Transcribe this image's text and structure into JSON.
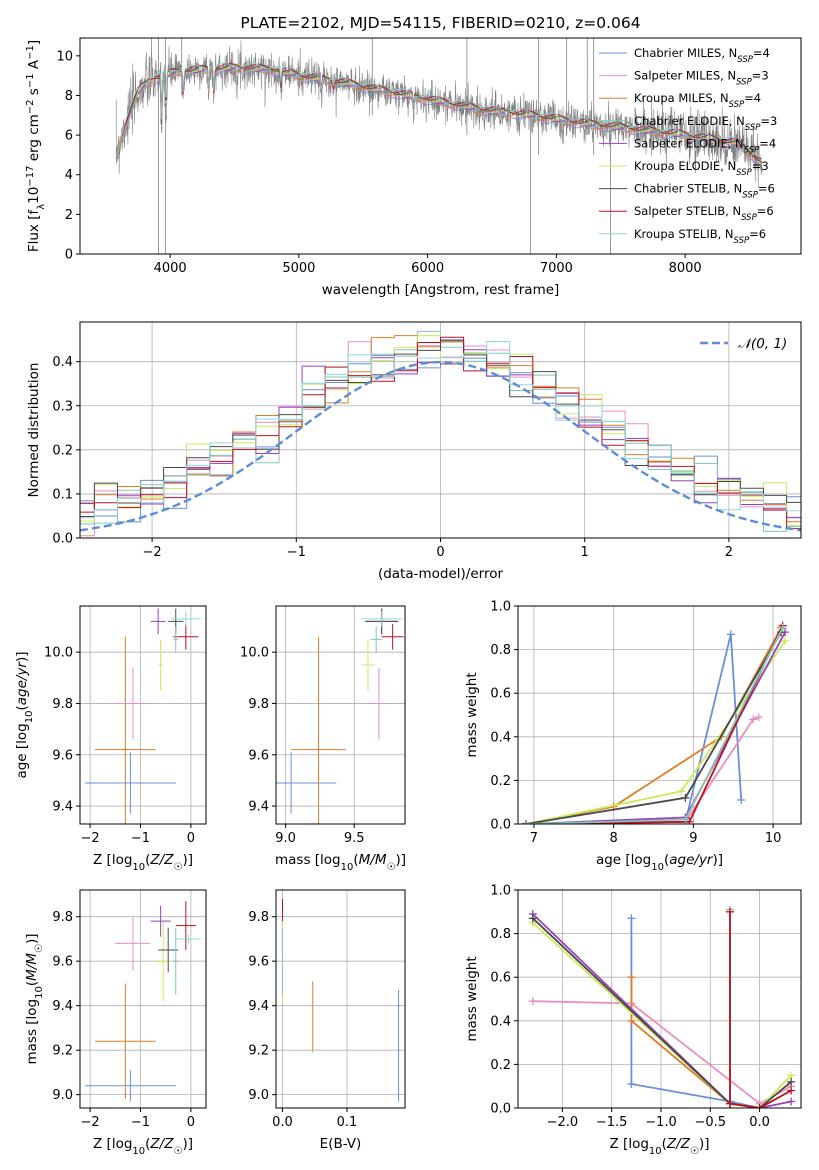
{
  "colors": {
    "Chabrier MILES": "#6a8fd8",
    "Salpeter MILES": "#e98fc0",
    "Kroupa MILES": "#e07c28",
    "Chabrier ELODIE": "#7fc8b4",
    "Salpeter ELODIE": "#9a3fc0",
    "Kroupa ELODIE": "#c9ea5a",
    "Chabrier STELIB": "#4a4a4a",
    "Salpeter STELIB": "#c01020",
    "Kroupa STELIB": "#8adada",
    "data": "#808080",
    "normal": "#5b8ed6"
  },
  "chart_data": [
    {
      "id": "spectrum",
      "type": "line",
      "title": "PLATE=2102, MJD=54115, FIBERID=0210, z=0.064",
      "xlabel": "wavelength [Angstrom, rest frame]",
      "ylabel": "Flux [fλ10⁻¹⁷ erg cm⁻² s⁻¹ A⁻¹]",
      "xlim": [
        3300,
        8900
      ],
      "ylim": [
        0,
        10.9
      ],
      "xticks": [
        4000,
        5000,
        6000,
        7000,
        8000
      ],
      "yticks": [
        0,
        2,
        4,
        6,
        8,
        10
      ],
      "grid": false,
      "legend_loc": "right",
      "legend": [
        "Chabrier MILES, N_SSP=4",
        "Salpeter MILES, N_SSP=3",
        "Kroupa MILES, N_SSP=4",
        "Chabrier ELODIE, N_SSP=3",
        "Salpeter ELODIE, N_SSP=4",
        "Kroupa ELODIE, N_SSP=3",
        "Chabrier STELIB, N_SSP=6",
        "Salpeter STELIB, N_SSP=6",
        "Kroupa STELIB, N_SSP=6"
      ],
      "data_continuum": [
        [
          3580,
          5.0
        ],
        [
          3650,
          6.5
        ],
        [
          3750,
          8.2
        ],
        [
          3850,
          8.8
        ],
        [
          3950,
          9.0
        ],
        [
          4050,
          9.2
        ],
        [
          4250,
          9.3
        ],
        [
          4500,
          9.4
        ],
        [
          4800,
          9.3
        ],
        [
          5000,
          9.0
        ],
        [
          5300,
          8.7
        ],
        [
          5600,
          8.3
        ],
        [
          6000,
          7.8
        ],
        [
          6400,
          7.3
        ],
        [
          6800,
          7.0
        ],
        [
          7200,
          6.6
        ],
        [
          7600,
          6.3
        ],
        [
          8000,
          6.0
        ],
        [
          8400,
          5.6
        ],
        [
          8600,
          4.6
        ]
      ]
    },
    {
      "id": "residuals",
      "type": "histogram",
      "xlabel": "(data-model)/error",
      "ylabel": "Normed distribution",
      "xlim": [
        -2.5,
        2.5
      ],
      "ylim": [
        0,
        0.49
      ],
      "xticks": [
        -2,
        -1,
        0,
        1,
        2
      ],
      "yticks": [
        0.0,
        0.1,
        0.2,
        0.3,
        0.4
      ],
      "grid": true,
      "legend_loc": "upper right",
      "legend": [
        "N(0,1)"
      ],
      "normal": {
        "mean": 0,
        "sd": 1
      }
    },
    {
      "id": "age_vs_Z",
      "type": "errorbar",
      "xlabel": "Z [log10(Z/Z☉)]",
      "ylabel": "age [log10(age/yr)]",
      "xlim": [
        -2.2,
        0.3
      ],
      "ylim": [
        9.33,
        10.18
      ],
      "xticks": [
        -2,
        -1,
        0
      ],
      "yticks": [
        9.4,
        9.6,
        9.8,
        10.0
      ],
      "grid": true,
      "points": [
        {
          "model": "Chabrier MILES",
          "x": -1.2,
          "xerr": 0.9,
          "y": 9.49,
          "yerr": 0.12
        },
        {
          "model": "Kroupa MILES",
          "x": -1.3,
          "xerr": 0.6,
          "y": 9.62,
          "yerr": 0.44
        },
        {
          "model": "Salpeter MILES",
          "x": -1.15,
          "xerr": 0.35,
          "y": 9.8,
          "yerr": 0.14
        },
        {
          "model": "Kroupa ELODIE",
          "x": -0.6,
          "xerr": 0.05,
          "y": 9.95,
          "yerr": 0.1
        },
        {
          "model": "Salpeter ELODIE",
          "x": -0.65,
          "xerr": 0.15,
          "y": 10.12,
          "yerr": 0.05
        },
        {
          "model": "Chabrier STELIB",
          "x": -0.3,
          "xerr": 0.15,
          "y": 10.12,
          "yerr": 0.05
        },
        {
          "model": "Salpeter STELIB",
          "x": -0.1,
          "xerr": 0.25,
          "y": 10.06,
          "yerr": 0.05
        },
        {
          "model": "Chabrier ELODIE",
          "x": -0.3,
          "xerr": 0.05,
          "y": 10.05,
          "yerr": 0.05
        },
        {
          "model": "Kroupa STELIB",
          "x": -0.1,
          "xerr": 0.3,
          "y": 10.13,
          "yerr": 0.03
        }
      ]
    },
    {
      "id": "age_vs_mass",
      "type": "errorbar",
      "xlabel": "mass [log10(M/M☉)]",
      "ylabel": "",
      "xlim": [
        8.93,
        9.87
      ],
      "ylim": [
        9.33,
        10.18
      ],
      "xticks": [
        9.0,
        9.5
      ],
      "yticks": [
        9.4,
        9.6,
        9.8,
        10.0
      ],
      "grid": true,
      "points": [
        {
          "model": "Chabrier MILES",
          "x": 9.04,
          "xerr": 0.33,
          "y": 9.49,
          "yerr": 0.12
        },
        {
          "model": "Kroupa MILES",
          "x": 9.24,
          "xerr": 0.2,
          "y": 9.62,
          "yerr": 0.44
        },
        {
          "model": "Salpeter MILES",
          "x": 9.68,
          "xerr": 0.08,
          "y": 9.8,
          "yerr": 0.14
        },
        {
          "model": "Kroupa ELODIE",
          "x": 9.6,
          "xerr": 0.05,
          "y": 9.95,
          "yerr": 0.1
        },
        {
          "model": "Salpeter ELODIE",
          "x": 9.7,
          "xerr": 0.12,
          "y": 10.12,
          "yerr": 0.05
        },
        {
          "model": "Chabrier STELIB",
          "x": 9.7,
          "xerr": 0.12,
          "y": 10.12,
          "yerr": 0.05
        },
        {
          "model": "Salpeter STELIB",
          "x": 9.78,
          "xerr": 0.08,
          "y": 10.06,
          "yerr": 0.05
        },
        {
          "model": "Chabrier ELODIE",
          "x": 9.66,
          "xerr": 0.04,
          "y": 10.05,
          "yerr": 0.05
        },
        {
          "model": "Kroupa STELIB",
          "x": 9.7,
          "xerr": 0.15,
          "y": 10.13,
          "yerr": 0.03
        }
      ]
    },
    {
      "id": "weight_vs_age",
      "type": "line",
      "xlabel": "age [log10(age/yr)]",
      "ylabel": "mass weight",
      "xlim": [
        6.8,
        10.35
      ],
      "ylim": [
        0,
        1.0
      ],
      "xticks": [
        7,
        8,
        9,
        10
      ],
      "yticks": [
        0.0,
        0.2,
        0.4,
        0.6,
        0.8,
        1.0
      ],
      "grid": true,
      "series": [
        {
          "model": "Chabrier MILES",
          "x": [
            6.9,
            8.9,
            9.47,
            9.6
          ],
          "y": [
            0.0,
            0.01,
            0.87,
            0.11
          ]
        },
        {
          "model": "Salpeter MILES",
          "x": [
            6.9,
            8.9,
            9.75,
            9.82
          ],
          "y": [
            0.0,
            0.01,
            0.48,
            0.49
          ]
        },
        {
          "model": "Kroupa MILES",
          "x": [
            6.9,
            8.0,
            9.35,
            10.1
          ],
          "y": [
            0.0,
            0.08,
            0.4,
            0.9
          ]
        },
        {
          "model": "Kroupa ELODIE",
          "x": [
            6.9,
            8.85,
            10.15
          ],
          "y": [
            0.0,
            0.15,
            0.84
          ]
        },
        {
          "model": "Salpeter ELODIE",
          "x": [
            6.9,
            8.9,
            10.15
          ],
          "y": [
            0.0,
            0.03,
            0.88
          ]
        },
        {
          "model": "Chabrier STELIB",
          "x": [
            6.9,
            8.9,
            10.1
          ],
          "y": [
            0.0,
            0.12,
            0.88
          ]
        },
        {
          "model": "Salpeter STELIB",
          "x": [
            6.9,
            8.95,
            10.12
          ],
          "y": [
            0.0,
            0.01,
            0.91
          ]
        },
        {
          "model": "Chabrier ELODIE",
          "x": [
            6.9,
            8.9,
            10.12
          ],
          "y": [
            0.0,
            0.02,
            0.9
          ]
        }
      ]
    },
    {
      "id": "mass_vs_Z",
      "type": "errorbar",
      "xlabel": "Z [log10(Z/Z☉)]",
      "ylabel": "mass [log10(M/M☉)]",
      "xlim": [
        -2.2,
        0.3
      ],
      "ylim": [
        8.94,
        9.92
      ],
      "xticks": [
        -2,
        -1,
        0
      ],
      "yticks": [
        9.0,
        9.2,
        9.4,
        9.6,
        9.8
      ],
      "grid": true,
      "points": [
        {
          "model": "Chabrier MILES",
          "x": -1.2,
          "xerr": 0.9,
          "y": 9.04,
          "yerr": 0.07
        },
        {
          "model": "Kroupa MILES",
          "x": -1.3,
          "xerr": 0.6,
          "y": 9.24,
          "yerr": 0.26
        },
        {
          "model": "Salpeter MILES",
          "x": -1.15,
          "xerr": 0.35,
          "y": 9.68,
          "yerr": 0.12
        },
        {
          "model": "Kroupa ELODIE",
          "x": -0.55,
          "xerr": 0.15,
          "y": 9.6,
          "yerr": 0.18
        },
        {
          "model": "Chabrier STELIB",
          "x": -0.45,
          "xerr": 0.2,
          "y": 9.65,
          "yerr": 0.1
        },
        {
          "model": "Salpeter ELODIE",
          "x": -0.6,
          "xerr": 0.2,
          "y": 9.78,
          "yerr": 0.07
        },
        {
          "model": "Salpeter STELIB",
          "x": -0.1,
          "xerr": 0.2,
          "y": 9.76,
          "yerr": 0.11
        },
        {
          "model": "Chabrier ELODIE",
          "x": -0.3,
          "xerr": 0.05,
          "y": 9.6,
          "yerr": 0.15
        },
        {
          "model": "Kroupa STELIB",
          "x": -0.05,
          "xerr": 0.25,
          "y": 9.7,
          "yerr": 0.02
        }
      ]
    },
    {
      "id": "mass_vs_ebv",
      "type": "errorbar",
      "xlabel": "E(B-V)",
      "ylabel": "",
      "xlim": [
        -0.01,
        0.19
      ],
      "ylim": [
        8.94,
        9.92
      ],
      "xticks": [
        0.0,
        0.1
      ],
      "yticks": [
        9.0,
        9.2,
        9.4,
        9.6,
        9.8
      ],
      "grid": true,
      "points": [
        {
          "model": "Chabrier MILES",
          "x": 0.18,
          "xerr": 0.0,
          "y": 9.22,
          "yerr": 0.25
        },
        {
          "model": "Kroupa MILES",
          "x": 0.047,
          "xerr": 0.0,
          "y": 9.35,
          "yerr": 0.16
        },
        {
          "model": "Salpeter STELIB",
          "x": 0.0,
          "xerr": 0.0,
          "y": 9.77,
          "yerr": 0.11
        },
        {
          "model": "Kroupa ELODIE",
          "x": 0.0,
          "xerr": 0.0,
          "y": 9.6,
          "yerr": 0.18
        },
        {
          "model": "Chabrier ELODIE",
          "x": 0.0,
          "xerr": 0.0,
          "y": 9.6,
          "yerr": 0.15
        }
      ]
    },
    {
      "id": "weight_vs_Z",
      "type": "line",
      "xlabel": "Z [log10(Z/Z☉)]",
      "ylabel": "mass weight",
      "xlim": [
        -2.45,
        0.42
      ],
      "ylim": [
        0,
        1.0
      ],
      "xticks": [
        -2.0,
        -1.5,
        -1.0,
        -0.5,
        0.0
      ],
      "yticks": [
        0.0,
        0.2,
        0.4,
        0.6,
        0.8,
        1.0
      ],
      "grid": true,
      "series": [
        {
          "model": "Chabrier MILES",
          "x": [
            -1.3,
            -1.3,
            -0.3,
            0.0
          ],
          "y": [
            0.87,
            0.11,
            0.03,
            0.0
          ]
        },
        {
          "model": "Salpeter MILES",
          "x": [
            -2.3,
            -1.3,
            0.0,
            0.32
          ],
          "y": [
            0.49,
            0.48,
            0.02,
            0.1
          ]
        },
        {
          "model": "Kroupa MILES",
          "x": [
            -1.3,
            -1.3,
            -0.3,
            0.0
          ],
          "y": [
            0.6,
            0.4,
            0.02,
            0.0
          ]
        },
        {
          "model": "Kroupa ELODIE",
          "x": [
            -2.3,
            -0.3,
            0.0,
            0.32
          ],
          "y": [
            0.85,
            0.02,
            0.0,
            0.15
          ]
        },
        {
          "model": "Salpeter ELODIE",
          "x": [
            -2.3,
            -0.3,
            0.0,
            0.32
          ],
          "y": [
            0.89,
            0.02,
            0.0,
            0.03
          ]
        },
        {
          "model": "Chabrier STELIB",
          "x": [
            -2.3,
            -0.3,
            0.0,
            0.32
          ],
          "y": [
            0.87,
            0.02,
            0.0,
            0.12
          ]
        },
        {
          "model": "Chabrier ELODIE",
          "x": [
            -0.3,
            -0.3,
            0.0
          ],
          "y": [
            0.91,
            0.02,
            0.0
          ]
        },
        {
          "model": "Salpeter STELIB",
          "x": [
            -0.3,
            -0.3,
            0.0,
            0.32
          ],
          "y": [
            0.9,
            0.02,
            0.0,
            0.08
          ]
        }
      ]
    }
  ]
}
